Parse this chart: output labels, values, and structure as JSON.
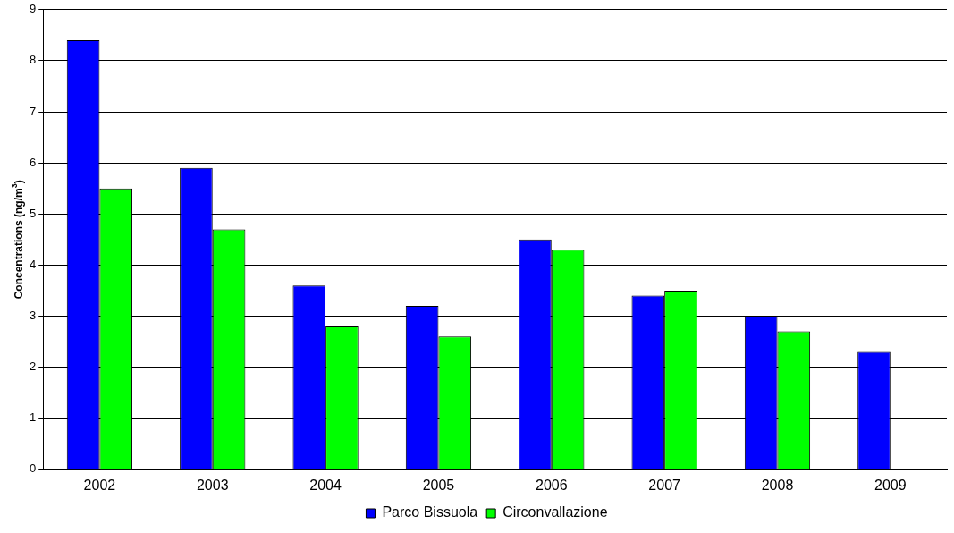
{
  "chart_data": {
    "type": "bar",
    "ylabel": "Concentrations (ng/m$^{3}$)",
    "categories": [
      "2002",
      "2003",
      "2004",
      "2005",
      "2006",
      "2007",
      "2008",
      "2009"
    ],
    "series": [
      {
        "name": "Parco Bissuola",
        "color": "#0000ff",
        "values": [
          8.4,
          5.9,
          3.6,
          3.2,
          4.5,
          3.4,
          3.0,
          2.3
        ]
      },
      {
        "name": "Circonvallazione",
        "color": "#00ff00",
        "values": [
          5.5,
          4.7,
          2.8,
          2.6,
          4.3,
          3.5,
          2.7,
          null
        ]
      }
    ],
    "ylim": [
      0,
      9
    ],
    "yticks": [
      0,
      1,
      2,
      3,
      4,
      5,
      6,
      7,
      8,
      9
    ],
    "grid": "y",
    "legend": "bottom"
  }
}
